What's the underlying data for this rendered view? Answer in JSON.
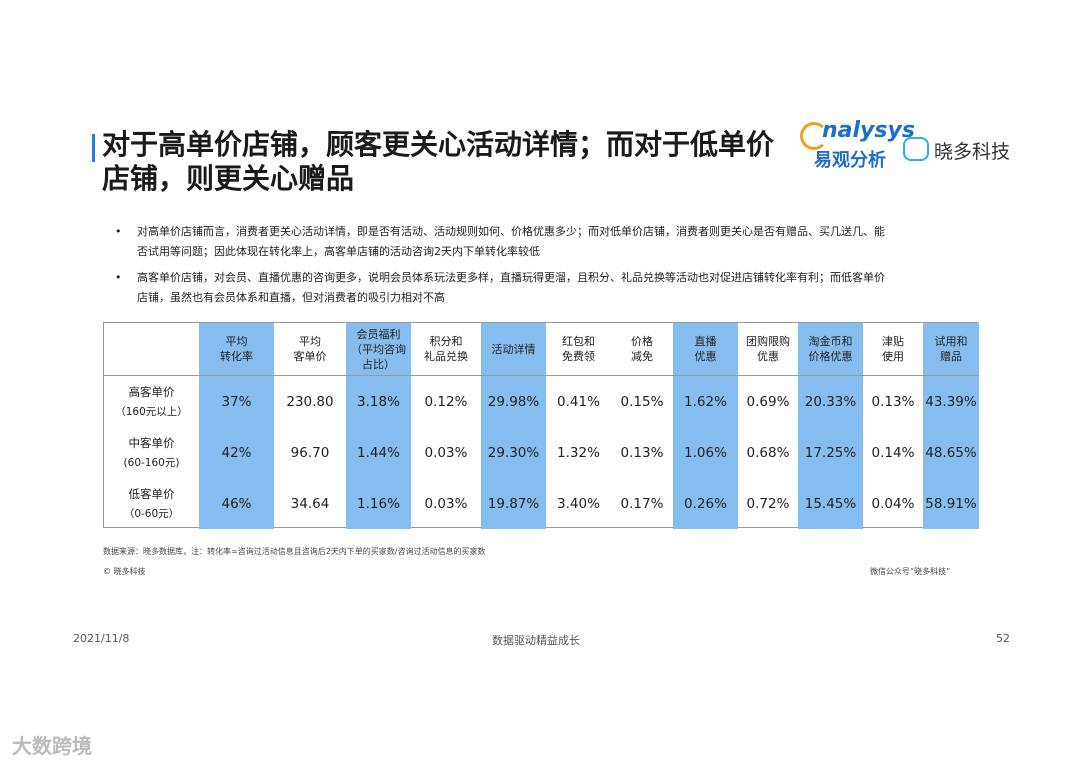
{
  "header": {
    "title_lines": [
      "对于高单价店铺，顾客更关心活动详情；而对于低单价",
      "店铺，则更关心赠品"
    ],
    "logo_analysys": "nalysys",
    "logo_analysys_cn": "易观分析",
    "logo_xiaoduo": "晓多科技"
  },
  "bullets": [
    [
      "对高单价店铺而言，消费者更关心活动详情，即是否有活动、活动规则如何、价格优惠多少；而对低单价店铺，消费者则更关心是否有赠品、买几送几、能",
      "否试用等问题；因此体现在转化率上，高客单店铺的活动咨询2天内下单转化率较低"
    ],
    [
      "高客单价店铺，对会员、直播优惠的咨询更多，说明会员体系玩法更多样，直播玩得更溜，且积分、礼品兑换等活动也对促进店铺转化率有利；而低客单价",
      "店铺，虽然也有会员体系和直播，但对消费者的吸引力相对不高"
    ]
  ],
  "table": {
    "columns": [
      [
        "平均",
        "转化率"
      ],
      [
        "平均",
        "客单价"
      ],
      [
        "会员福利",
        "（平均咨询",
        "占比）"
      ],
      [
        "积分和",
        "礼品兑换"
      ],
      [
        "活动详情"
      ],
      [
        "红包和",
        "免费领"
      ],
      [
        "价格",
        "减免"
      ],
      [
        "直播",
        "优惠"
      ],
      [
        "团购限购",
        "优惠"
      ],
      [
        "淘金币和",
        "价格优惠"
      ],
      [
        "津贴",
        "使用"
      ],
      [
        "试用和",
        "赠品"
      ]
    ],
    "rows": [
      {
        "label": [
          "高客单价",
          "（160元以上）"
        ],
        "cells": [
          "37%",
          "230.80",
          "3.18%",
          "0.12%",
          "29.98%",
          "0.41%",
          "0.15%",
          "1.62%",
          "0.69%",
          "20.33%",
          "0.13%",
          "43.39%"
        ]
      },
      {
        "label": [
          "中客单价",
          "(60-160元)"
        ],
        "cells": [
          "42%",
          "96.70",
          "1.44%",
          "0.03%",
          "29.30%",
          "1.32%",
          "0.13%",
          "1.06%",
          "0.68%",
          "17.25%",
          "0.14%",
          "48.65%"
        ]
      },
      {
        "label": [
          "低客单价",
          "（0-60元）"
        ],
        "cells": [
          "46%",
          "34.64",
          "1.16%",
          "0.03%",
          "19.87%",
          "3.40%",
          "0.17%",
          "0.26%",
          "0.72%",
          "15.45%",
          "0.04%",
          "58.91%"
        ]
      }
    ]
  },
  "notes": {
    "source": "数据来源：晓多数据库，注：转化率=咨询过活动信息且咨询后2天内下单的买家数/咨询过活动信息的买家数",
    "copyright": "© 晓多科技",
    "wechat": "微信公众号“晓多科技”"
  },
  "footer": {
    "date": "2021/11/8",
    "slogan": "数据驱动精益成长",
    "page": "52"
  },
  "watermark": "大数跨境"
}
